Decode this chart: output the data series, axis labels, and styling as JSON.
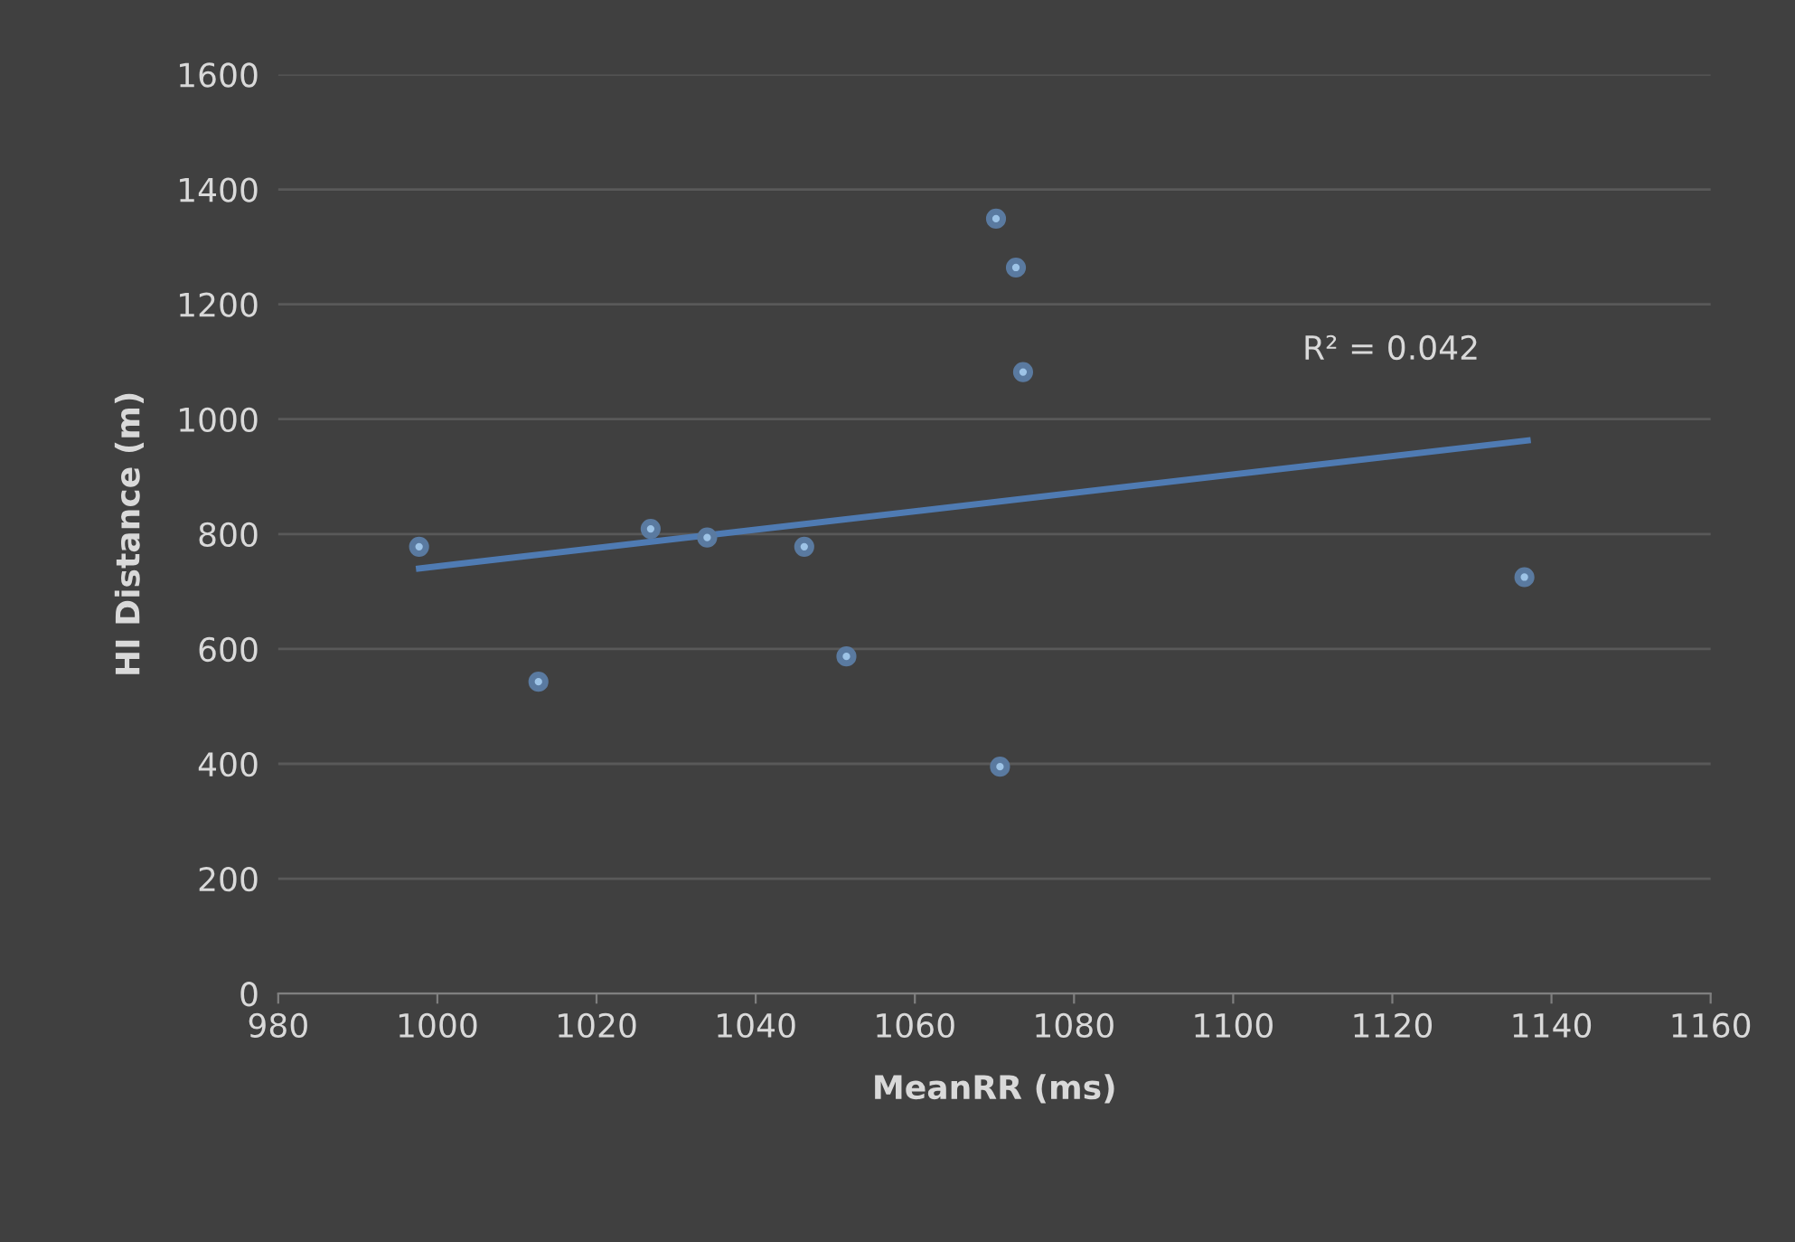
{
  "chart_data": {
    "type": "scatter",
    "xlabel": "MeanRR (ms)",
    "ylabel": "HI Distance (m)",
    "xlim": [
      980,
      1160
    ],
    "xticks": [
      980,
      1000,
      1020,
      1040,
      1060,
      1080,
      1100,
      1120,
      1140,
      1160
    ],
    "ylim": [
      0,
      1600
    ],
    "yticks": [
      0,
      200,
      400,
      600,
      800,
      1000,
      1200,
      1400,
      1600
    ],
    "grid": "y",
    "series": [
      {
        "marker": "circle",
        "color": "#9dc3e6",
        "x": [
          997.7,
          1012.7,
          1026.8,
          1033.9,
          1046.1,
          1051.4,
          1070.2,
          1072.7,
          1073.6,
          1070.7,
          1136.6
        ],
        "values": [
          778,
          543,
          809,
          794,
          778,
          587,
          1349,
          1264,
          1082,
          395,
          725
        ]
      },
      {
        "type": "line",
        "color": "#4f7bb3",
        "x": [
          997.7,
          1137
        ],
        "values": [
          740,
          963
        ]
      }
    ],
    "annotations": [
      "R² = 0.042"
    ]
  }
}
